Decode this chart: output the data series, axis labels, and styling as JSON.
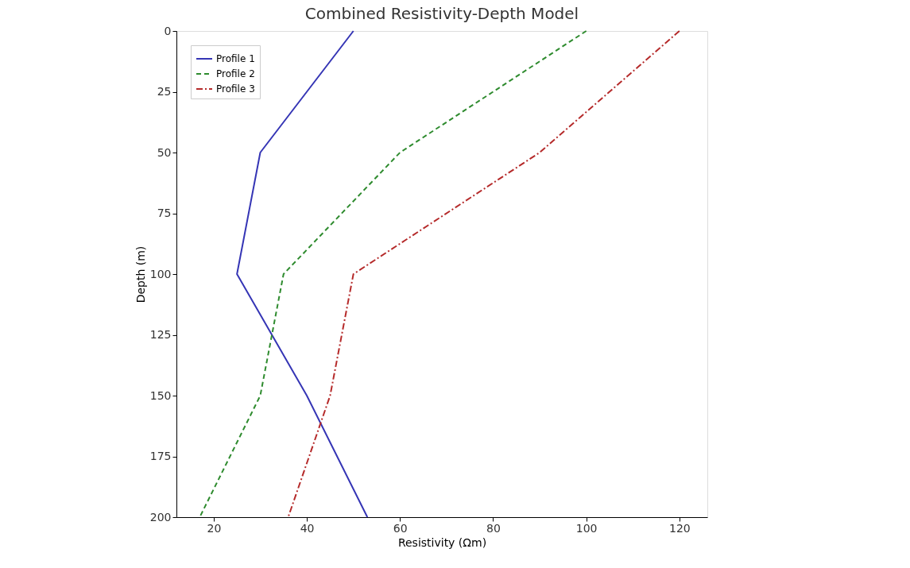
{
  "chart_data": {
    "type": "line",
    "title": "Combined Resistivity-Depth Model",
    "xlabel": "Resistivity (Ωm)",
    "ylabel": "Depth (m)",
    "xlim": [
      12,
      126
    ],
    "xticks": [
      20,
      40,
      60,
      80,
      100,
      120
    ],
    "ylim": [
      200,
      0
    ],
    "yticks": [
      0,
      25,
      50,
      75,
      100,
      125,
      150,
      175,
      200
    ],
    "grid": false,
    "legend": "top left",
    "marker": "none",
    "series": [
      {
        "name": "Profile 1",
        "color": "#3535b5",
        "line_style": "solid",
        "x": [
          50,
          30,
          25,
          40,
          53
        ],
        "values": [
          0,
          50,
          100,
          150,
          200
        ]
      },
      {
        "name": "Profile 2",
        "color": "#2e8b2e",
        "line_style": "dashed",
        "x": [
          100,
          60,
          35,
          30,
          17
        ],
        "values": [
          0,
          50,
          100,
          150,
          200
        ]
      },
      {
        "name": "Profile 3",
        "color": "#b52a2a",
        "line_style": "dashdot",
        "x": [
          120,
          90,
          50,
          45,
          36
        ],
        "values": [
          0,
          50,
          100,
          150,
          200
        ]
      }
    ]
  }
}
